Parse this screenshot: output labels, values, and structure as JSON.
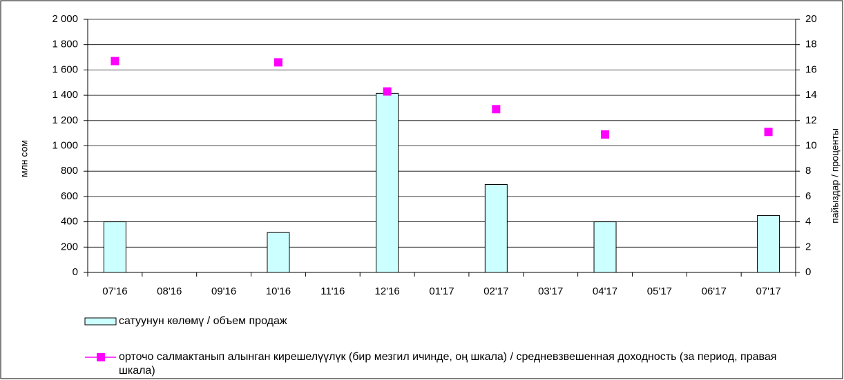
{
  "chart_data": {
    "type": "bar",
    "y_label": "млн сом",
    "y2_label": "пайыздар / проценты",
    "categories": [
      "07'16",
      "08'16",
      "09'16",
      "10'16",
      "11'16",
      "12'16",
      "01'17",
      "02'17",
      "03'17",
      "04'17",
      "05'17",
      "06'17",
      "07'17"
    ],
    "series": [
      {
        "name": "сатуунун көлөмү / объем продаж",
        "type": "bar",
        "color": "#ccffff",
        "values": [
          400,
          null,
          null,
          315,
          null,
          1415,
          null,
          695,
          null,
          400,
          null,
          null,
          450
        ]
      },
      {
        "name": "орточо салмактанып алынган кирешелүүлүк (бир мезгил ичинде, оң шкала) / средневзвешенная доходность (за период, правая шкала)",
        "type": "scatter",
        "axis": "y2",
        "color": "#ff00ff",
        "values": [
          16.7,
          null,
          null,
          16.6,
          null,
          14.3,
          null,
          12.9,
          null,
          10.9,
          null,
          null,
          11.1
        ]
      }
    ],
    "ylim": [
      0,
      2000
    ],
    "yticks": [
      0,
      200,
      400,
      600,
      800,
      {
        "value": 1000,
        "label": "1 000"
      },
      {
        "value": 1200,
        "label": "1 200"
      },
      {
        "value": 1400,
        "label": "1 400"
      },
      {
        "value": 1600,
        "label": "1 600"
      },
      {
        "value": 1800,
        "label": "1 800"
      },
      {
        "value": 2000,
        "label": "2 000"
      }
    ],
    "y2lim": [
      0,
      20
    ],
    "y2ticks": [
      0,
      2,
      4,
      6,
      8,
      10,
      12,
      14,
      16,
      18,
      20
    ],
    "grid": true
  }
}
